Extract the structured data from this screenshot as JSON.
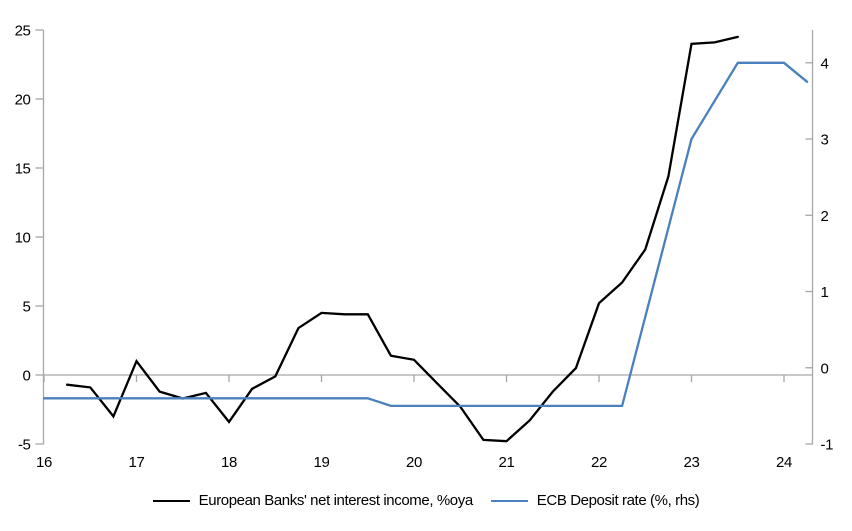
{
  "chart_data": {
    "type": "line",
    "title": "",
    "x_axis": {
      "tick_values": [
        16,
        17,
        18,
        19,
        20,
        21,
        22,
        23,
        24
      ],
      "tick_labels": [
        "16",
        "17",
        "18",
        "19",
        "20",
        "21",
        "22",
        "23",
        "24"
      ],
      "range": [
        16,
        24.3
      ],
      "units": "year (20xx)"
    },
    "left_axis": {
      "tick_values": [
        -5,
        0,
        5,
        10,
        15,
        20,
        25
      ],
      "range": [
        -5,
        25
      ]
    },
    "right_axis": {
      "tick_values": [
        -1,
        0,
        1,
        2,
        3,
        4
      ],
      "range": [
        -1,
        4.43
      ]
    },
    "zero_line": true,
    "grid": false,
    "legend_position": "bottom",
    "series": [
      {
        "name": "European Banks' net interest income, %oya",
        "axis": "left",
        "color": "#000000",
        "points": [
          [
            16.25,
            -0.7
          ],
          [
            16.5,
            -0.9
          ],
          [
            16.75,
            -3.0
          ],
          [
            17.0,
            1.0
          ],
          [
            17.25,
            -1.2
          ],
          [
            17.5,
            -1.7
          ],
          [
            17.75,
            -1.3
          ],
          [
            18.0,
            -3.4
          ],
          [
            18.25,
            -1.0
          ],
          [
            18.5,
            -0.1
          ],
          [
            18.75,
            3.4
          ],
          [
            19.0,
            4.5
          ],
          [
            19.25,
            4.4
          ],
          [
            19.5,
            4.4
          ],
          [
            19.75,
            1.4
          ],
          [
            20.0,
            1.1
          ],
          [
            20.25,
            -0.6
          ],
          [
            20.5,
            -2.3
          ],
          [
            20.75,
            -4.7
          ],
          [
            21.0,
            -4.8
          ],
          [
            21.25,
            -3.3
          ],
          [
            21.5,
            -1.2
          ],
          [
            21.75,
            0.5
          ],
          [
            22.0,
            5.2
          ],
          [
            22.25,
            6.7
          ],
          [
            22.5,
            9.1
          ],
          [
            22.75,
            14.4
          ],
          [
            23.0,
            24.0
          ],
          [
            23.25,
            24.1
          ],
          [
            23.5,
            24.5
          ]
        ]
      },
      {
        "name": "ECB Deposit rate (%, rhs)",
        "axis": "right",
        "color": "#4a80bd",
        "points": [
          [
            16.0,
            -0.4
          ],
          [
            19.5,
            -0.4
          ],
          [
            19.75,
            -0.5
          ],
          [
            22.25,
            -0.5
          ],
          [
            23.0,
            3.0
          ],
          [
            23.5,
            4.0
          ],
          [
            24.0,
            4.0
          ],
          [
            24.25,
            3.75
          ]
        ]
      }
    ]
  },
  "colors": {
    "axis": "#a6a6a6",
    "tick_text": "#000000",
    "background": "#ffffff"
  }
}
